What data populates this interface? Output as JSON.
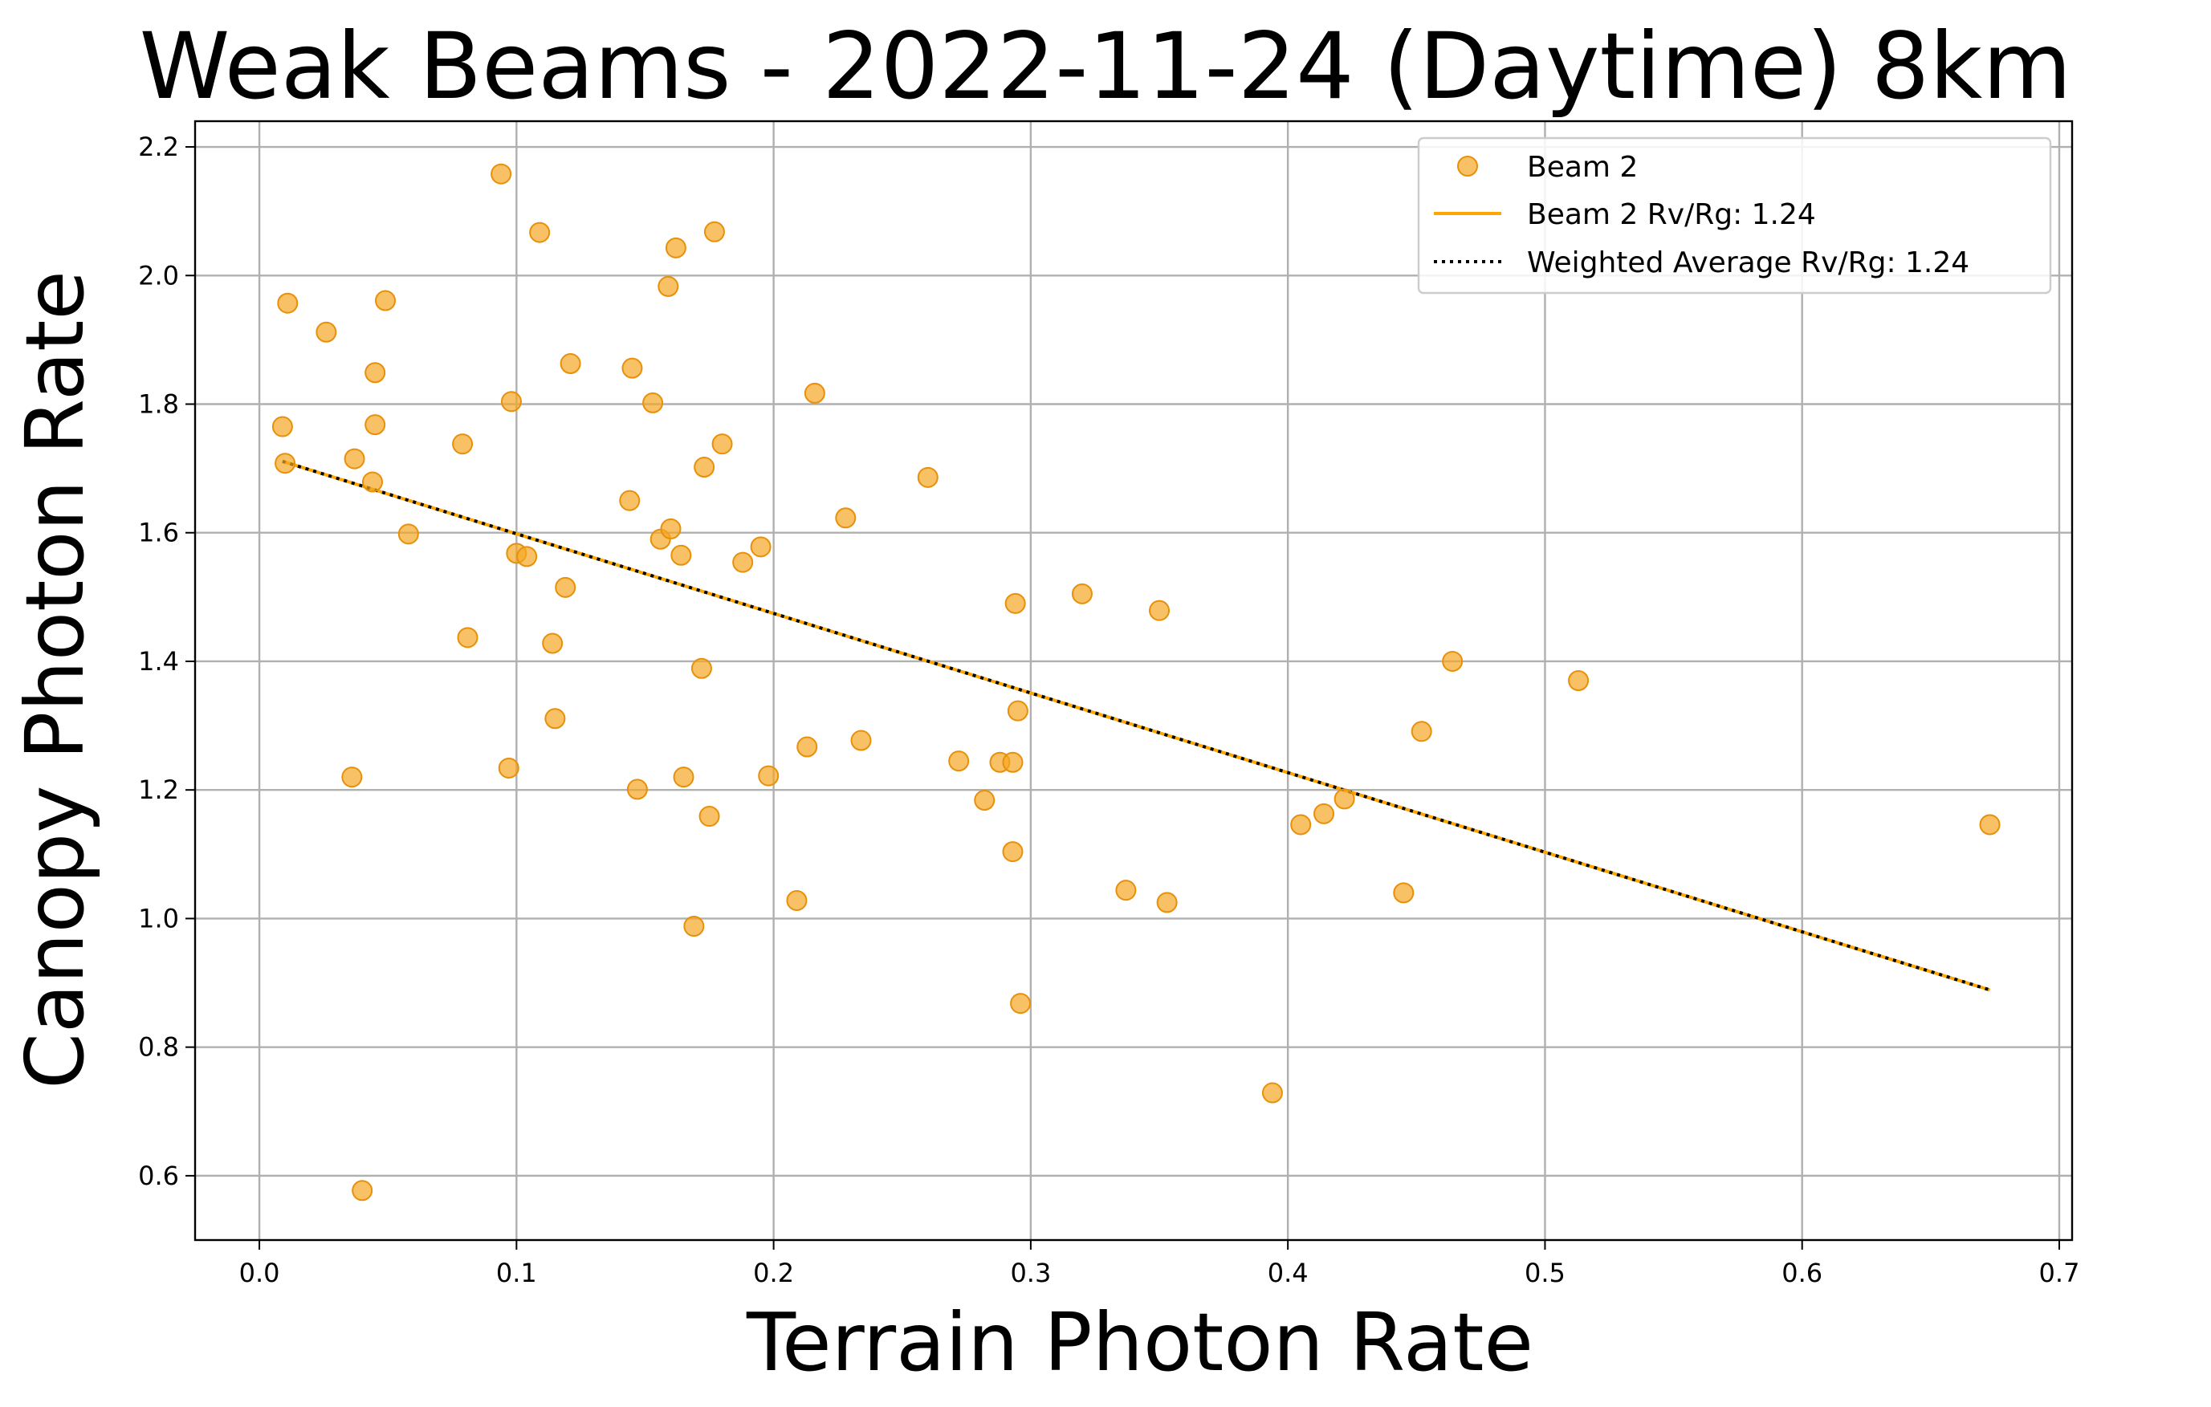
{
  "chart_data": {
    "type": "scatter",
    "title": "Weak Beams - 2022-11-24 (Daytime) 8km",
    "xlabel": "Terrain Photon Rate",
    "ylabel": "Canopy Photon Rate",
    "xlim": [
      -0.025,
      0.705
    ],
    "ylim": [
      0.5,
      2.24
    ],
    "xticks": [
      0.0,
      0.1,
      0.2,
      0.3,
      0.4,
      0.5,
      0.6,
      0.7
    ],
    "xtick_labels": [
      "0.0",
      "0.1",
      "0.2",
      "0.3",
      "0.4",
      "0.5",
      "0.6",
      "0.7"
    ],
    "yticks": [
      0.6,
      0.8,
      1.0,
      1.2,
      1.4,
      1.6,
      1.8,
      2.0,
      2.2
    ],
    "ytick_labels": [
      "0.6",
      "0.8",
      "1.0",
      "1.2",
      "1.4",
      "1.6",
      "1.8",
      "2.0",
      "2.2"
    ],
    "grid": true,
    "legend_position": "top-right",
    "colors": {
      "scatter": "#f5a623",
      "scatter_edge": "#e8900a",
      "beam_line": "#ffa500",
      "average_line": "#000000"
    },
    "series": [
      {
        "name": "Beam 2",
        "kind": "scatter",
        "points": [
          [
            0.009,
            1.765
          ],
          [
            0.011,
            1.957
          ],
          [
            0.01,
            1.708
          ],
          [
            0.026,
            1.912
          ],
          [
            0.037,
            1.715
          ],
          [
            0.036,
            1.22
          ],
          [
            0.04,
            0.577
          ],
          [
            0.044,
            1.679
          ],
          [
            0.045,
            1.849
          ],
          [
            0.045,
            1.768
          ],
          [
            0.049,
            1.961
          ],
          [
            0.058,
            1.598
          ],
          [
            0.079,
            1.738
          ],
          [
            0.081,
            1.437
          ],
          [
            0.094,
            2.158
          ],
          [
            0.097,
            1.234
          ],
          [
            0.098,
            1.804
          ],
          [
            0.1,
            1.568
          ],
          [
            0.104,
            1.563
          ],
          [
            0.109,
            2.067
          ],
          [
            0.114,
            1.428
          ],
          [
            0.115,
            1.311
          ],
          [
            0.119,
            1.515
          ],
          [
            0.121,
            1.863
          ],
          [
            0.144,
            1.65
          ],
          [
            0.145,
            1.856
          ],
          [
            0.147,
            1.201
          ],
          [
            0.153,
            1.802
          ],
          [
            0.156,
            1.59
          ],
          [
            0.159,
            1.983
          ],
          [
            0.16,
            1.606
          ],
          [
            0.162,
            2.043
          ],
          [
            0.164,
            1.565
          ],
          [
            0.165,
            1.22
          ],
          [
            0.169,
            0.988
          ],
          [
            0.172,
            1.389
          ],
          [
            0.173,
            1.702
          ],
          [
            0.175,
            1.159
          ],
          [
            0.177,
            2.068
          ],
          [
            0.18,
            1.738
          ],
          [
            0.188,
            1.554
          ],
          [
            0.195,
            1.578
          ],
          [
            0.198,
            1.222
          ],
          [
            0.209,
            1.028
          ],
          [
            0.213,
            1.267
          ],
          [
            0.216,
            1.817
          ],
          [
            0.228,
            1.623
          ],
          [
            0.234,
            1.277
          ],
          [
            0.26,
            1.686
          ],
          [
            0.272,
            1.245
          ],
          [
            0.282,
            1.184
          ],
          [
            0.288,
            1.243
          ],
          [
            0.293,
            1.243
          ],
          [
            0.293,
            1.104
          ],
          [
            0.294,
            1.49
          ],
          [
            0.295,
            1.323
          ],
          [
            0.296,
            0.868
          ],
          [
            0.32,
            1.505
          ],
          [
            0.337,
            1.044
          ],
          [
            0.35,
            1.479
          ],
          [
            0.353,
            1.025
          ],
          [
            0.394,
            0.729
          ],
          [
            0.405,
            1.146
          ],
          [
            0.414,
            1.163
          ],
          [
            0.422,
            1.186
          ],
          [
            0.445,
            1.04
          ],
          [
            0.452,
            1.291
          ],
          [
            0.464,
            1.4
          ],
          [
            0.513,
            1.37
          ],
          [
            0.673,
            1.146
          ]
        ]
      },
      {
        "name": "Beam 2 Rv/Rg: 1.24",
        "kind": "line",
        "style": "solid",
        "points": [
          [
            0.009,
            1.711
          ],
          [
            0.673,
            0.889
          ]
        ]
      },
      {
        "name": "Weighted Average Rv/Rg: 1.24",
        "kind": "line",
        "style": "dotted",
        "points": [
          [
            0.009,
            1.711
          ],
          [
            0.673,
            0.889
          ]
        ]
      }
    ],
    "legend": [
      {
        "label": "Beam 2",
        "marker": "circle"
      },
      {
        "label": "Beam 2 Rv/Rg: 1.24",
        "marker": "solid-line"
      },
      {
        "label": "Weighted Average Rv/Rg: 1.24",
        "marker": "dotted-line"
      }
    ]
  }
}
